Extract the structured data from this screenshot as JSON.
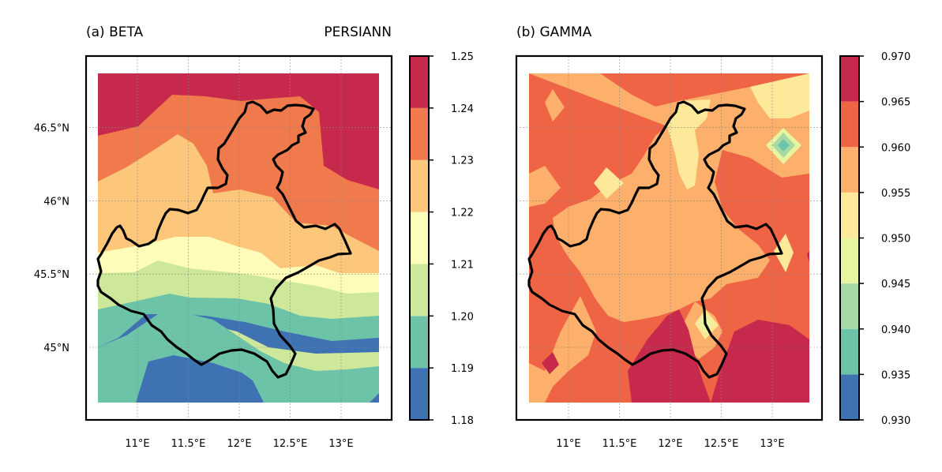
{
  "colors": {
    "c1": "#3e72b3",
    "c2": "#6cc3a8",
    "c3": "#cde89b",
    "c4": "#fdfdb9",
    "c5": "#fdc77b",
    "c6": "#f07a4b",
    "c7": "#c6294b",
    "g_b1": "#6cc3a8",
    "g_b2": "#a7d9a4",
    "g_b3": "#e7f5a0",
    "g_b4": "#fee99a",
    "g_b5": "#fdb06b",
    "g_b6": "#ee6444"
  },
  "chart_data": [
    {
      "type": "heatmap",
      "title": "(a) BETA",
      "subtitle": "PERSIANN",
      "xticks": [
        "11°E",
        "11.5°E",
        "12°E",
        "12.5°E",
        "13°E"
      ],
      "yticks": [
        "45°N",
        "45.5°N",
        "46°N",
        "46.5°N"
      ],
      "x": [
        11,
        11.5,
        12,
        12.5,
        13
      ],
      "y": [
        45,
        45.5,
        46,
        46.5
      ],
      "colorbar_levels": [
        1.18,
        1.19,
        1.2,
        1.21,
        1.22,
        1.23,
        1.24,
        1.25
      ],
      "colorbar_labels": [
        "1.18",
        "1.19",
        "1.20",
        "1.21",
        "1.22",
        "1.23",
        "1.24",
        "1.25"
      ]
    },
    {
      "type": "heatmap",
      "title": "(b) GAMMA",
      "subtitle": "",
      "xticks": [
        "11°E",
        "11.5°E",
        "12°E",
        "12.5°E",
        "13°E"
      ],
      "yticks": [],
      "x": [
        11,
        11.5,
        12,
        12.5,
        13
      ],
      "colorbar_levels": [
        0.93,
        0.935,
        0.94,
        0.945,
        0.95,
        0.955,
        0.96,
        0.965,
        0.97
      ],
      "colorbar_labels": [
        "0.930",
        "0.935",
        "0.940",
        "0.945",
        "0.950",
        "0.955",
        "0.960",
        "0.965",
        "0.970"
      ]
    }
  ]
}
